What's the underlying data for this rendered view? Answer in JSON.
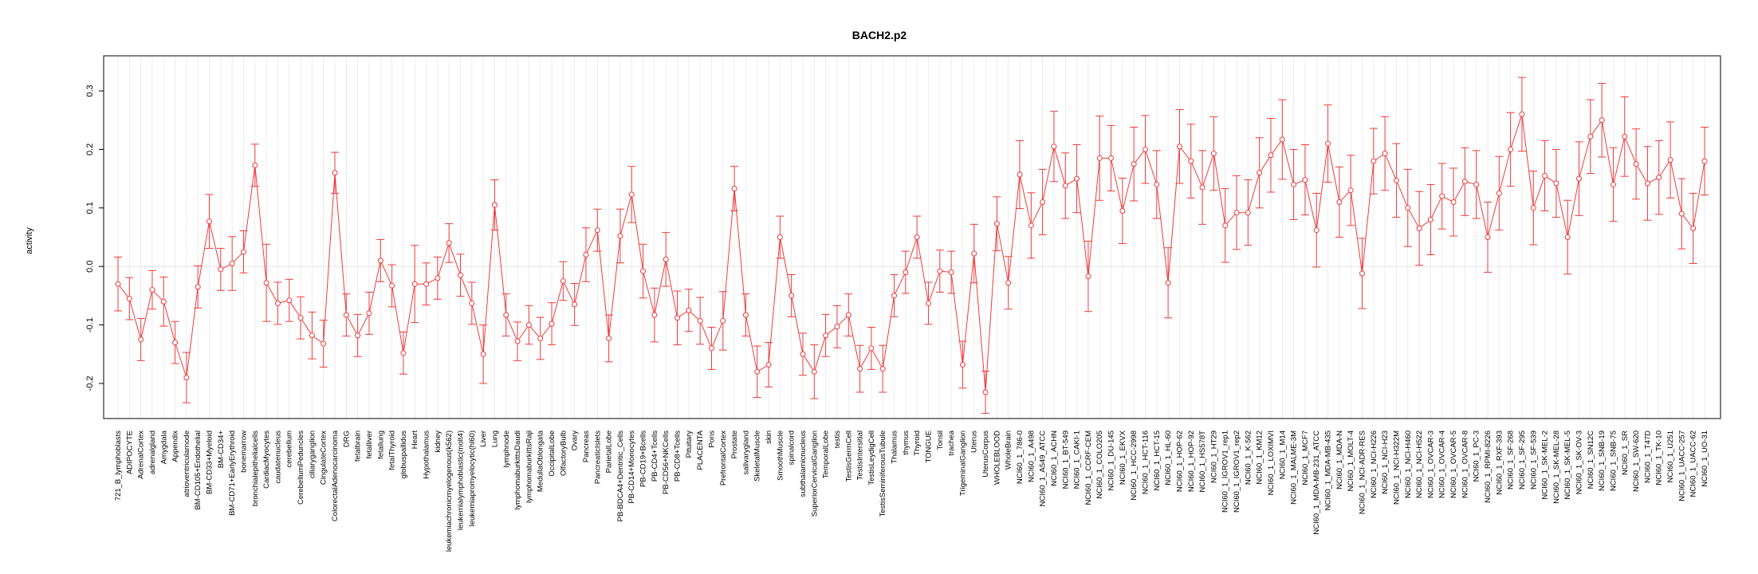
{
  "chart_data": {
    "type": "line",
    "title": "BACH2.p2",
    "xlabel": "",
    "ylabel": "activity",
    "ylim": [
      -0.26,
      0.36
    ],
    "yticks": [
      -0.2,
      -0.1,
      0.0,
      0.1,
      0.2,
      0.3
    ],
    "ytick_labels": [
      "-0.2",
      "-0.1",
      "0.0",
      "0.1",
      "0.2",
      "0.3"
    ],
    "grid": true,
    "legend": "none",
    "color": "#ee3b3b",
    "gridline_color": "#e6e6e6",
    "categories": [
      "721_B_lymphoblasts",
      "ADIPOCYTE",
      "AdrenalCortex",
      "adrenalgland",
      "Amygdala",
      "Appendix",
      "atrioventricularnode",
      "BM-CD105+Endothelial",
      "BM-CD33+Myeloid",
      "BM-CD34+",
      "BM-CD71+EarlyErythroid",
      "bonemarrow",
      "bronchialepithelialcells",
      "CardiacMyocytes",
      "caudatenucleus",
      "cerebellum",
      "CerebellumPeduncles",
      "ciliaryganglion",
      "CingulateCortex",
      "ColorectalAdenocarcinoma",
      "DRG",
      "fetalbrain",
      "fetalliver",
      "fetallung",
      "fetalThyroid",
      "globuspallidus",
      "Heart",
      "Hypothalamus",
      "kidney",
      "leukemiachronicmyelogenous(k562)",
      "leukemialymphoblastic(molt4)",
      "leukemiapromyelocytic(hl60)",
      "Liver",
      "Lung",
      "lymphnode",
      "lymphomaburkittsDaudi",
      "lymphomaburkittsRaji",
      "MedullaOblongata",
      "OccipitalLobe",
      "OlfactoryBulb",
      "Ovary",
      "Pancreas",
      "PancreaticIslets",
      "ParietalLobe",
      "PB-BDCA4+Dentritic_Cells",
      "PB-CD14+Monocytes",
      "PB-CD19+Bcells",
      "PB-CD4+Tcells",
      "PB-CD56+NKCells",
      "PB-CD8+Tcells",
      "Pituitary",
      "PLACENTA",
      "Pons",
      "PrefrontalCortex",
      "Prostate",
      "salivarygland",
      "SkeletalMuscle",
      "skin",
      "SmoothMuscle",
      "spinalcord",
      "subthalamicnucleus",
      "SuperiorCervicalGanglion",
      "TemporalLobe",
      "testis",
      "TestisGermCell",
      "TestisIntersitial",
      "TestisLeydigCell",
      "TestisSeminiferousTubule",
      "Thalamus",
      "thymus",
      "Thyroid",
      "TONGUE",
      "Tonsil",
      "trachea",
      "TrigeminalGanglion",
      "Uterus",
      "UterusCorpus",
      "WHOLEBLOOD",
      "WholeBrain",
      "NCI60_1_786-0",
      "NCI60_1_A498",
      "NCI60_1_A549_ATCC",
      "NCI60_1_ACHN",
      "NCI60_1_BT-549",
      "NCI60_1_CAKI-1",
      "NCI60_1_CCRF-CEM",
      "NCI60_1_COLO205",
      "NCI60_1_DU-145",
      "NCI60_1_EKVX",
      "NCI60_1_HCC-2998",
      "NCI60_1_HCT-116",
      "NCI60_1_HCT-15",
      "NCI60_1_HL-60",
      "NCI60_1_HOP-62",
      "NCI60_1_HOP-92",
      "NCI60_1_HS578T",
      "NCI60_1_HT29",
      "NCI60_1_IGROV1_rep1",
      "NCI60_1_IGROV1_rep2",
      "NCI60_1_K-562",
      "NCI60_1_KM12",
      "NCI60_1_LOXIMVI",
      "NCI60_1_M14",
      "NCI60_1_MALME-3M",
      "NCI60_1_MCF7",
      "NCI60_1_MDA-MB-231_ATCC",
      "NCI60_1_MDA-MB-435",
      "NCI60_1_MDA-N",
      "NCI60_1_MOLT-4",
      "NCI60_1_NCI-ADR-RES",
      "NCI60_1_NCI-H226",
      "NCI60_1_NCI-H23",
      "NCI60_1_NCI-H322M",
      "NCI60_1_NCI-H460",
      "NCI60_1_NCI-H522",
      "NCI60_1_OVCAR-3",
      "NCI60_1_OVCAR-4",
      "NCI60_1_OVCAR-5",
      "NCI60_1_OVCAR-8",
      "NCI60_1_PC-3",
      "NCI60_1_RPMI-8226",
      "NCI60_1_RXF-393",
      "NCI60_1_SF-268",
      "NCI60_1_SF-295",
      "NCI60_1_SF-539",
      "NCI60_1_SK-MEL-2",
      "NCI60_1_SK-MEL-28",
      "NCI60_1_SK-MEL-5",
      "NCI60_1_SK-OV-3",
      "NCI60_1_SN12C",
      "NCI60_1_SNB-19",
      "NCI60_1_SNB-75",
      "NCI60_1_SR",
      "NCI60_1_SW-620",
      "NCI60_1_T47D",
      "NCI60_1_TK-10",
      "NCI60_1_U251",
      "NCI60_1_UACC-257",
      "NCI60_1_UACC-62",
      "NCI60_1_UO-31"
    ],
    "values": [
      -0.03,
      -0.055,
      -0.125,
      -0.04,
      -0.06,
      -0.13,
      -0.19,
      -0.035,
      0.077,
      -0.005,
      0.005,
      0.025,
      0.173,
      -0.028,
      -0.063,
      -0.058,
      -0.088,
      -0.118,
      -0.132,
      0.16,
      -0.083,
      -0.118,
      -0.08,
      0.01,
      -0.033,
      -0.148,
      -0.03,
      -0.03,
      -0.02,
      0.04,
      -0.015,
      -0.063,
      -0.15,
      0.105,
      -0.083,
      -0.128,
      -0.1,
      -0.123,
      -0.098,
      -0.025,
      -0.065,
      0.02,
      0.062,
      -0.123,
      0.052,
      0.123,
      -0.008,
      -0.083,
      0.012,
      -0.088,
      -0.075,
      -0.093,
      -0.14,
      -0.093,
      0.133,
      -0.083,
      -0.18,
      -0.168,
      0.05,
      -0.05,
      -0.15,
      -0.18,
      -0.118,
      -0.103,
      -0.083,
      -0.175,
      -0.14,
      -0.175,
      -0.05,
      -0.01,
      0.05,
      -0.063,
      -0.008,
      -0.01,
      -0.168,
      0.022,
      -0.215,
      0.073,
      -0.028,
      0.157,
      0.07,
      0.11,
      0.205,
      0.138,
      0.15,
      -0.017,
      0.185,
      0.185,
      0.095,
      0.175,
      0.2,
      0.14,
      -0.028,
      0.205,
      0.18,
      0.135,
      0.193,
      0.07,
      0.092,
      0.092,
      0.16,
      0.19,
      0.217,
      0.14,
      0.148,
      0.062,
      0.21,
      0.11,
      0.13,
      -0.012,
      0.18,
      0.193,
      0.147,
      0.1,
      0.065,
      0.08,
      0.12,
      0.11,
      0.145,
      0.14,
      0.05,
      0.125,
      0.2,
      0.26,
      0.1,
      0.155,
      0.142,
      0.05,
      0.15,
      0.222,
      0.25,
      0.14,
      0.222,
      0.175,
      0.142,
      0.152,
      0.182,
      0.09,
      0.065,
      0.18
    ],
    "errors": [
      0.046,
      0.036,
      0.036,
      0.033,
      0.042,
      0.036,
      0.043,
      0.036,
      0.046,
      0.036,
      0.046,
      0.036,
      0.036,
      0.066,
      0.036,
      0.036,
      0.036,
      0.04,
      0.04,
      0.035,
      0.036,
      0.036,
      0.036,
      0.036,
      0.036,
      0.036,
      0.066,
      0.036,
      0.036,
      0.033,
      0.036,
      0.036,
      0.05,
      0.043,
      0.036,
      0.033,
      0.033,
      0.036,
      0.036,
      0.033,
      0.036,
      0.046,
      0.036,
      0.04,
      0.046,
      0.048,
      0.046,
      0.046,
      0.046,
      0.046,
      0.036,
      0.04,
      0.036,
      0.05,
      0.038,
      0.036,
      0.044,
      0.038,
      0.036,
      0.036,
      0.036,
      0.046,
      0.036,
      0.036,
      0.036,
      0.04,
      0.036,
      0.04,
      0.036,
      0.036,
      0.036,
      0.036,
      0.036,
      0.036,
      0.04,
      0.05,
      0.036,
      0.046,
      0.045,
      0.058,
      0.056,
      0.056,
      0.06,
      0.056,
      0.058,
      0.06,
      0.072,
      0.056,
      0.056,
      0.063,
      0.058,
      0.058,
      0.06,
      0.063,
      0.063,
      0.063,
      0.063,
      0.063,
      0.063,
      0.056,
      0.06,
      0.063,
      0.068,
      0.06,
      0.06,
      0.063,
      0.066,
      0.06,
      0.06,
      0.06,
      0.056,
      0.063,
      0.063,
      0.066,
      0.063,
      0.06,
      0.056,
      0.058,
      0.058,
      0.058,
      0.06,
      0.063,
      0.063,
      0.063,
      0.063,
      0.06,
      0.058,
      0.063,
      0.063,
      0.063,
      0.063,
      0.063,
      0.068,
      0.06,
      0.063,
      0.063,
      0.065,
      0.06,
      0.06,
      0.058
    ]
  }
}
